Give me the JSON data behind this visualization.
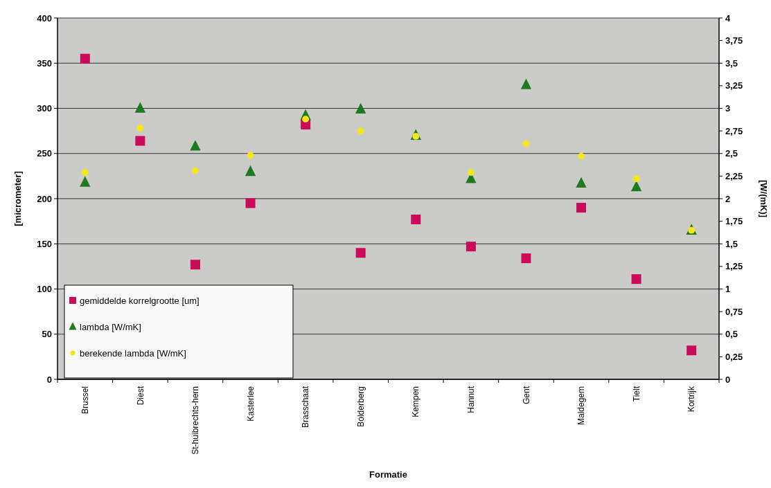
{
  "chart_data": {
    "type": "scatter",
    "xlabel": "Formatie",
    "ylabel": "[micrometer]",
    "y2label": "[W/(mK)]",
    "categories": [
      "Brussel",
      "Diest",
      "St-huibrechts-hern",
      "Kasterlee",
      "Brasschaat",
      "Bolderberg",
      "Kempen",
      "Hannut",
      "Gent",
      "Maldegem",
      "Tielt",
      "Kortrijk"
    ],
    "series": [
      {
        "name": "gemiddelde korrelgrootte [um]",
        "color": "#cc0a5a",
        "marker": "square",
        "values": [
          355,
          264,
          127,
          195,
          282,
          140,
          177,
          147,
          134,
          190,
          111,
          32
        ]
      },
      {
        "name": "lambda [W/mK]",
        "color": "#1e7a1e",
        "marker": "triangle",
        "axis": "y2",
        "values": [
          2.18,
          3.0,
          2.58,
          2.3,
          2.92,
          2.99,
          2.7,
          2.22,
          3.26,
          2.17,
          2.13,
          1.65
        ]
      },
      {
        "name": "berekende lambda [W/mK]",
        "color": "#f5e61a",
        "marker": "circle",
        "axis": "y2",
        "values": [
          2.29,
          2.78,
          2.31,
          2.48,
          2.88,
          2.75,
          2.69,
          2.29,
          2.61,
          2.47,
          2.22,
          1.65
        ]
      }
    ],
    "ylim": [
      0,
      400
    ],
    "yticks": [
      0,
      50,
      100,
      150,
      200,
      250,
      300,
      350,
      400
    ],
    "y2lim": [
      0,
      4
    ],
    "y2ticks": [
      0,
      {
        "value": 0.25,
        "label": "0,25"
      },
      {
        "value": 0.5,
        "label": "0,5"
      },
      {
        "value": 0.75,
        "label": "0,75"
      },
      1,
      {
        "value": 1.25,
        "label": "1,25"
      },
      {
        "value": 1.5,
        "label": "1,5"
      },
      {
        "value": 1.75,
        "label": "1,75"
      },
      2,
      {
        "value": 2.25,
        "label": "2,25"
      },
      {
        "value": 2.5,
        "label": "2,5"
      },
      {
        "value": 2.75,
        "label": "2,75"
      },
      3,
      {
        "value": 3.25,
        "label": "3,25"
      },
      {
        "value": 3.5,
        "label": "3,5"
      },
      {
        "value": 3.75,
        "label": "3,75"
      },
      4
    ],
    "grid": "y",
    "legend": "bottom left"
  }
}
